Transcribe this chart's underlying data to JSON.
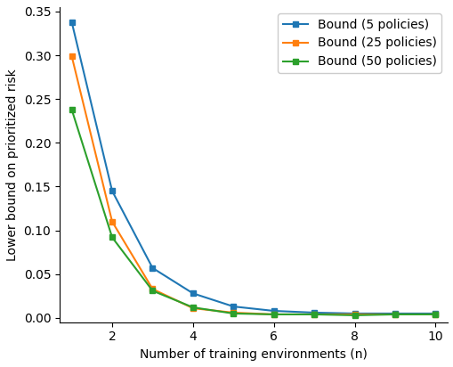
{
  "title": "",
  "xlabel": "Number of training environments (n)",
  "ylabel": "Lower bound on prioritized risk",
  "x": [
    1,
    2,
    3,
    4,
    5,
    6,
    7,
    8,
    9,
    10
  ],
  "series": [
    {
      "label": "Bound (5 policies)",
      "color": "#1f77b4",
      "y": [
        0.338,
        0.145,
        0.057,
        0.028,
        0.013,
        0.008,
        0.006,
        0.005,
        0.005,
        0.005
      ]
    },
    {
      "label": "Bound (25 policies)",
      "color": "#ff7f0e",
      "y": [
        0.299,
        0.11,
        0.033,
        0.011,
        0.006,
        0.004,
        0.004,
        0.004,
        0.004,
        0.004
      ]
    },
    {
      "label": "Bound (50 policies)",
      "color": "#2ca02c",
      "y": [
        0.238,
        0.092,
        0.031,
        0.012,
        0.005,
        0.004,
        0.004,
        0.003,
        0.004,
        0.004
      ]
    }
  ],
  "ylim": [
    -0.005,
    0.355
  ],
  "xlim": [
    0.7,
    10.3
  ],
  "yticks": [
    0.0,
    0.05,
    0.1,
    0.15,
    0.2,
    0.25,
    0.3,
    0.35
  ],
  "xticks": [
    2,
    4,
    6,
    8,
    10
  ],
  "marker": "s",
  "markersize": 4,
  "linewidth": 1.5,
  "background_color": "#ffffff",
  "legend_loc": "upper right",
  "legend_fontsize": 10,
  "axis_fontsize": 10,
  "tick_fontsize": 10
}
